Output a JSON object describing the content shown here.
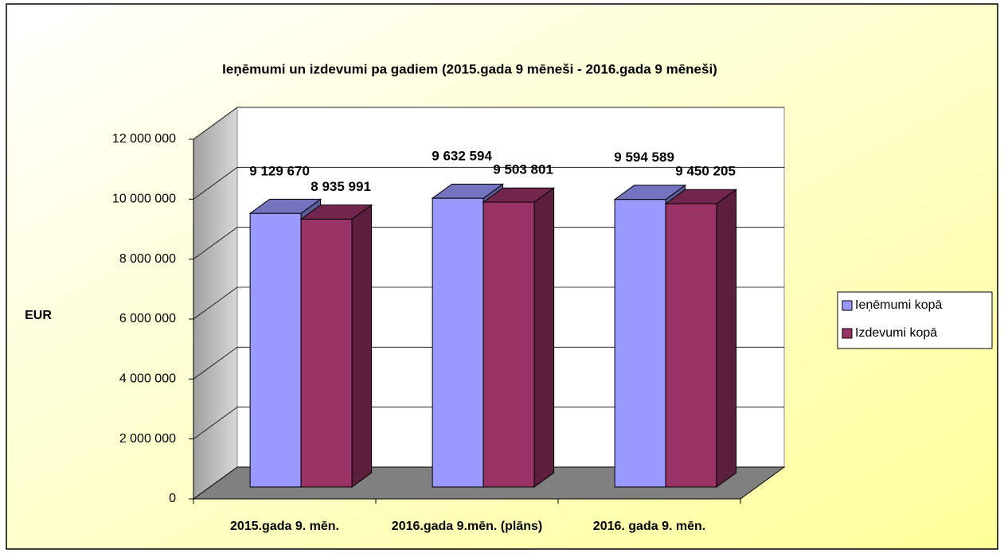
{
  "chart_data": {
    "type": "bar3d",
    "title": "Ieņēmumi un izdevumi pa gadiem (2015.gada 9 mēneši - 2016.gada 9 mēneši)",
    "y_axis_label": "EUR",
    "categories": [
      "2015.gada 9. mēn.",
      "2016.gada 9.mēn. (plāns)",
      "2016. gada 9. mēn."
    ],
    "series": [
      {
        "name": "Ieņēmumi kopā",
        "color": "#9999ff",
        "values": [
          9129670,
          9632594,
          9594589
        ],
        "value_labels": [
          "9 129 670",
          "9 632 594",
          "9 594 589"
        ]
      },
      {
        "name": "Izdevumi kopā",
        "color": "#993366",
        "values": [
          8935991,
          9503801,
          9450205
        ],
        "value_labels": [
          "8 935 991",
          "9 503 801",
          "9 450 205"
        ]
      }
    ],
    "ylim": [
      0,
      12000000
    ],
    "yticks": [
      0,
      {
        "value": 2000000,
        "label": "2 000 000"
      },
      {
        "value": 4000000,
        "label": "4 000 000"
      },
      {
        "value": 6000000,
        "label": "6 000 000"
      },
      {
        "value": 8000000,
        "label": "8 000 000"
      },
      {
        "value": 10000000,
        "label": "10 000 000"
      },
      {
        "value": 12000000,
        "label": "12 000 000"
      }
    ],
    "grid": true,
    "legend": "right"
  }
}
